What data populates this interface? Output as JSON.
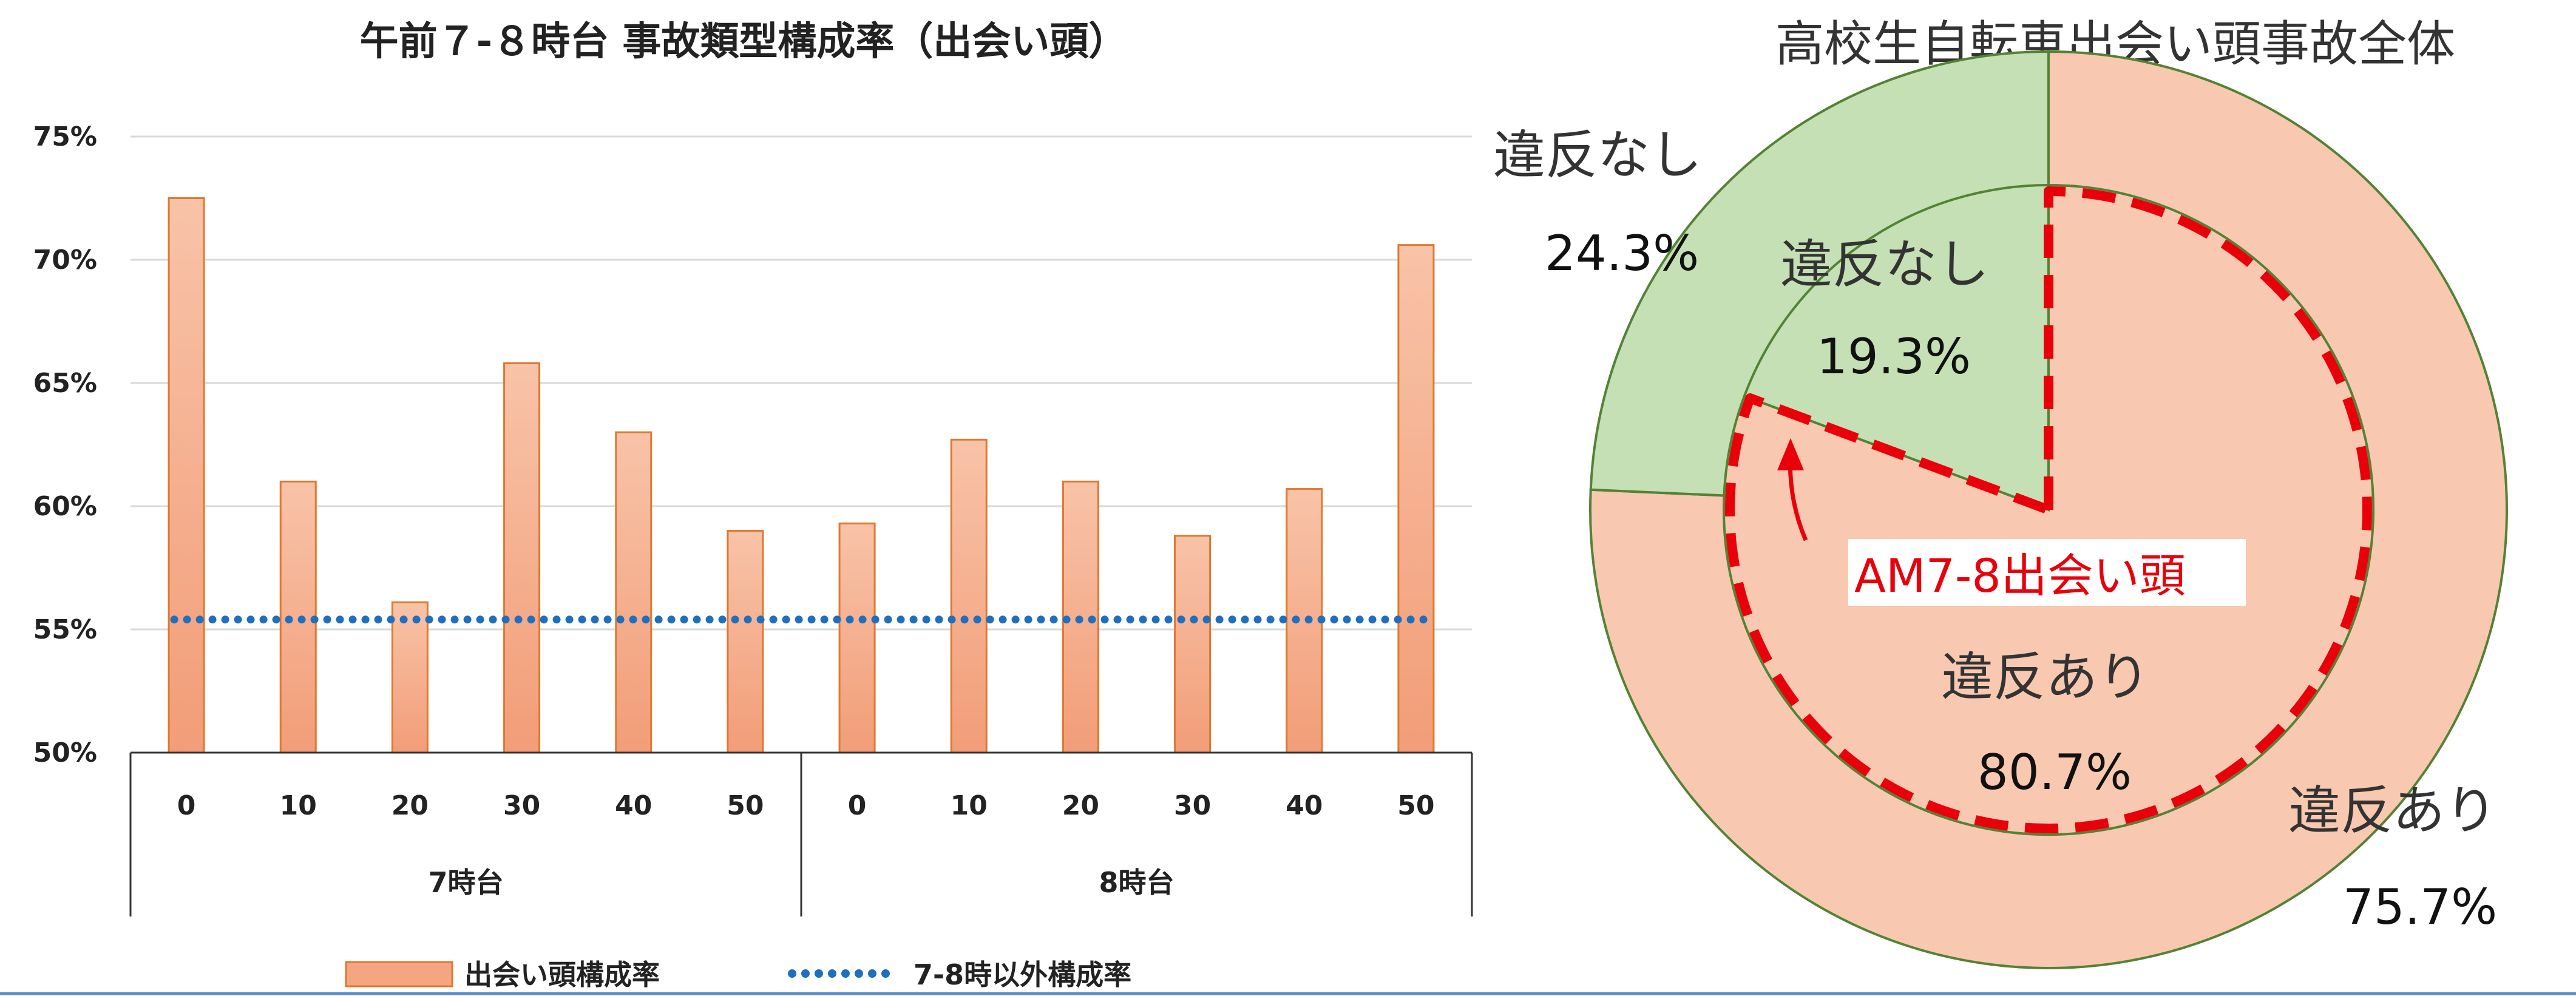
{
  "chart_data": [
    {
      "type": "bar",
      "title": "午前７-８時台 事故類型構成率（出会い頭）",
      "ylim": [
        0.5,
        0.75
      ],
      "yticks": [
        "50%",
        "55%",
        "60%",
        "65%",
        "70%",
        "75%"
      ],
      "ytick_values": [
        0.5,
        0.55,
        0.6,
        0.65,
        0.7,
        0.75
      ],
      "categories": [
        "0",
        "10",
        "20",
        "30",
        "40",
        "50",
        "0",
        "10",
        "20",
        "30",
        "40",
        "50"
      ],
      "groups": [
        {
          "label": "7時台",
          "count": 6
        },
        {
          "label": "8時台",
          "count": 6
        }
      ],
      "series": [
        {
          "name": "出会い頭構成率",
          "kind": "bar",
          "color": "#f4a582",
          "values": [
            0.725,
            0.61,
            0.561,
            0.658,
            0.63,
            0.59,
            0.593,
            0.627,
            0.61,
            0.588,
            0.607,
            0.706
          ]
        },
        {
          "name": "7-8時以外構成率",
          "kind": "line",
          "style": "dotted",
          "color": "#1f6fbf",
          "values": [
            0.554,
            0.554,
            0.554,
            0.554,
            0.554,
            0.554,
            0.554,
            0.554,
            0.554,
            0.554,
            0.554,
            0.554
          ]
        }
      ],
      "grid": true,
      "legend_position": "bottom"
    },
    {
      "type": "pie",
      "title": "高校生自転車出会い頭事故全体",
      "outer": {
        "slices": [
          {
            "label": "違反あり",
            "value": "75.7%",
            "fraction": 0.757,
            "color": "#f8c9b0"
          },
          {
            "label": "違反なし",
            "value": "24.3%",
            "fraction": 0.243,
            "color": "#c5e0b4"
          }
        ]
      },
      "inner": {
        "label": "AM7-8出会い頭",
        "slices": [
          {
            "label": "違反あり",
            "value": "80.7%",
            "fraction": 0.807,
            "color": "#f8c9b0"
          },
          {
            "label": "違反なし",
            "value": "19.3%",
            "fraction": 0.193,
            "color": "#c5e0b4"
          }
        ]
      },
      "colors": {
        "ring_edge": "#548235",
        "pie_edge": "#e8000b",
        "highlight": "#e8000b"
      }
    }
  ]
}
